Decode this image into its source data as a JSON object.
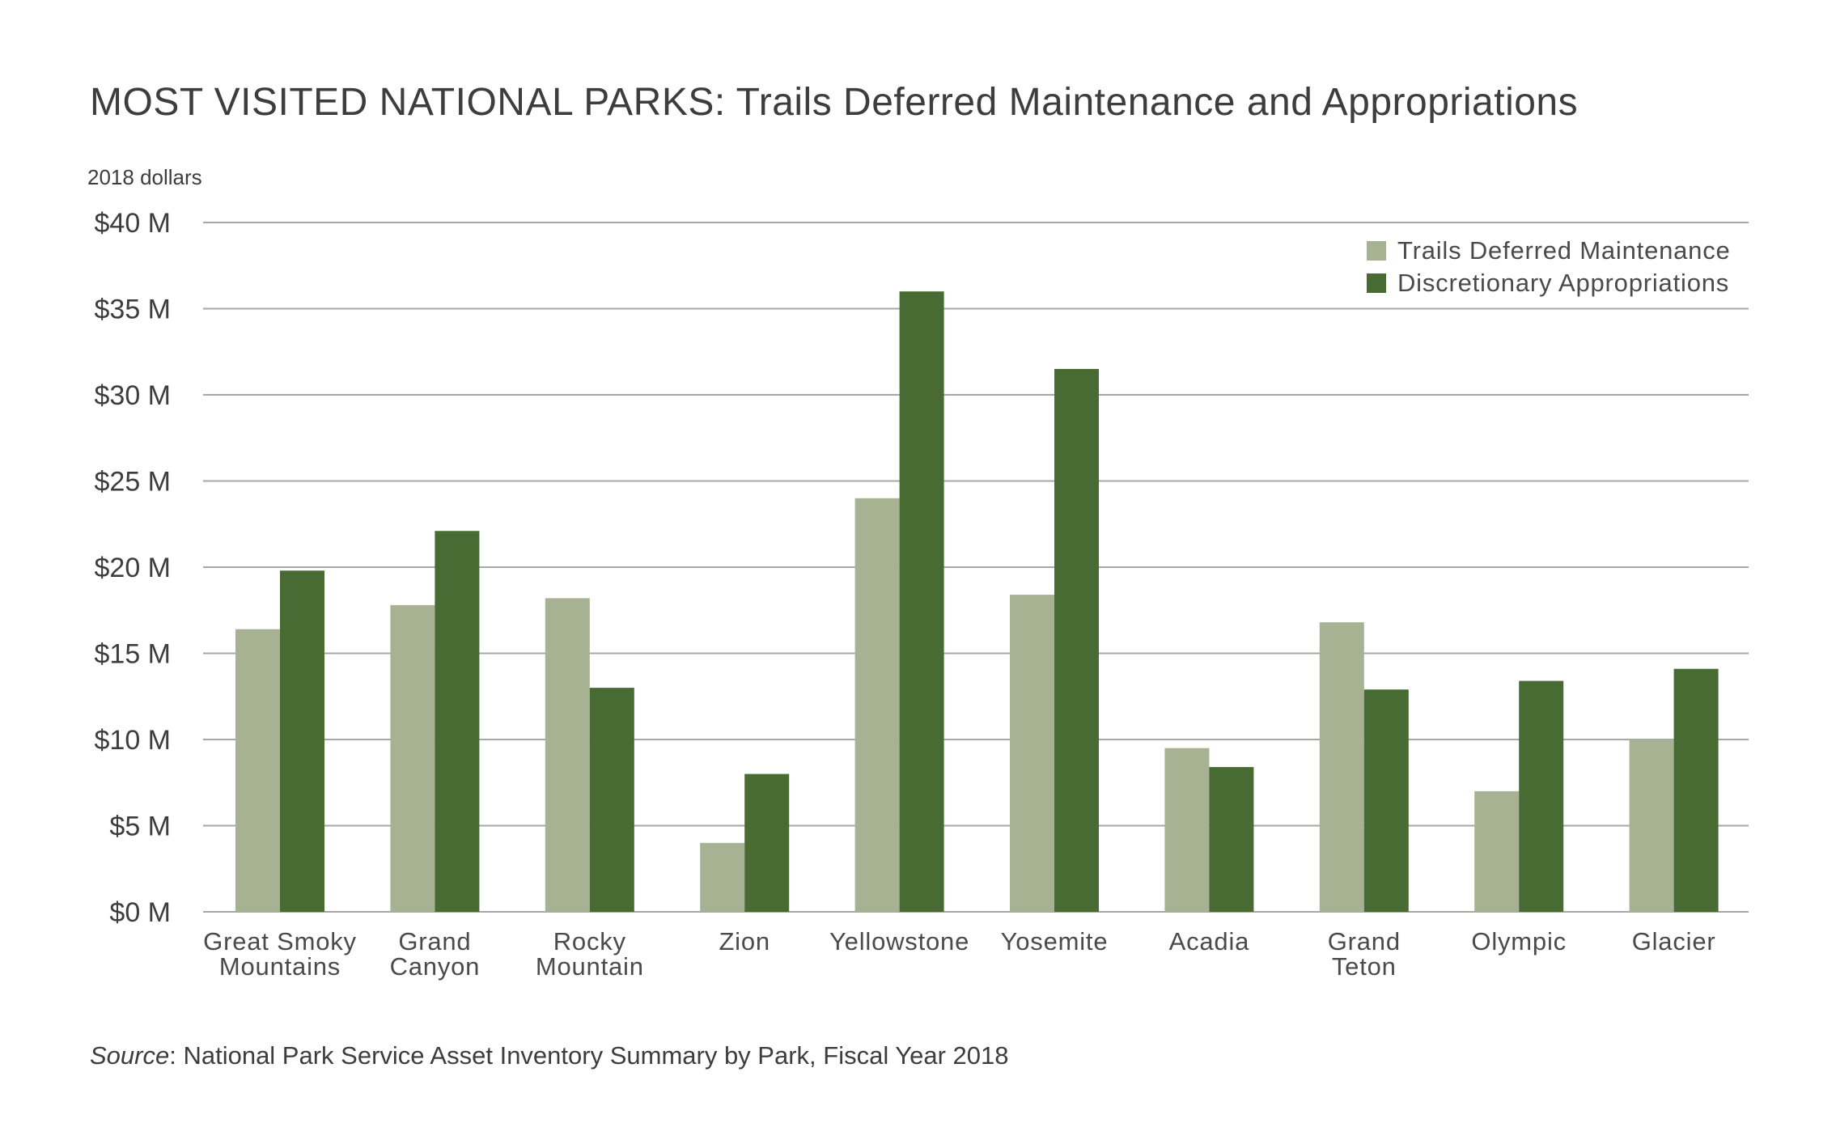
{
  "chart_data": {
    "type": "bar",
    "title": "MOST VISITED NATIONAL PARKS: Trails Deferred Maintenance and Appropriations",
    "unit_label": "2018 dollars",
    "xlabel": "",
    "ylabel": "",
    "ylim": [
      0,
      40
    ],
    "yticks": [
      0,
      5,
      10,
      15,
      20,
      25,
      30,
      35,
      40
    ],
    "ytick_labels": [
      "$0 M",
      "$5 M",
      "$10 M",
      "$15 M",
      "$20 M",
      "$25 M",
      "$30 M",
      "$35 M",
      "$40 M"
    ],
    "grid": true,
    "legend_position": "top-right",
    "categories": [
      [
        "Great Smoky",
        "Mountains"
      ],
      [
        "Grand",
        "Canyon"
      ],
      [
        "Rocky",
        "Mountain"
      ],
      [
        "Zion"
      ],
      [
        "Yellowstone"
      ],
      [
        "Yosemite"
      ],
      [
        "Acadia"
      ],
      [
        "Grand",
        "Teton"
      ],
      [
        "Olympic"
      ],
      [
        "Glacier"
      ]
    ],
    "series": [
      {
        "name": "Trails Deferred Maintenance",
        "color": "#a7b293",
        "values": [
          16.4,
          17.8,
          18.2,
          4.0,
          24.0,
          18.4,
          9.5,
          16.8,
          7.0,
          10.0
        ]
      },
      {
        "name": "Discretionary Appropriations",
        "color": "#486b34",
        "values": [
          19.8,
          22.1,
          13.0,
          8.0,
          36.0,
          31.5,
          8.4,
          12.9,
          13.4,
          14.1
        ]
      }
    ],
    "source_label": "Source",
    "source_text": ": National Park Service Asset Inventory Summary by Park, Fiscal Year 2018"
  }
}
